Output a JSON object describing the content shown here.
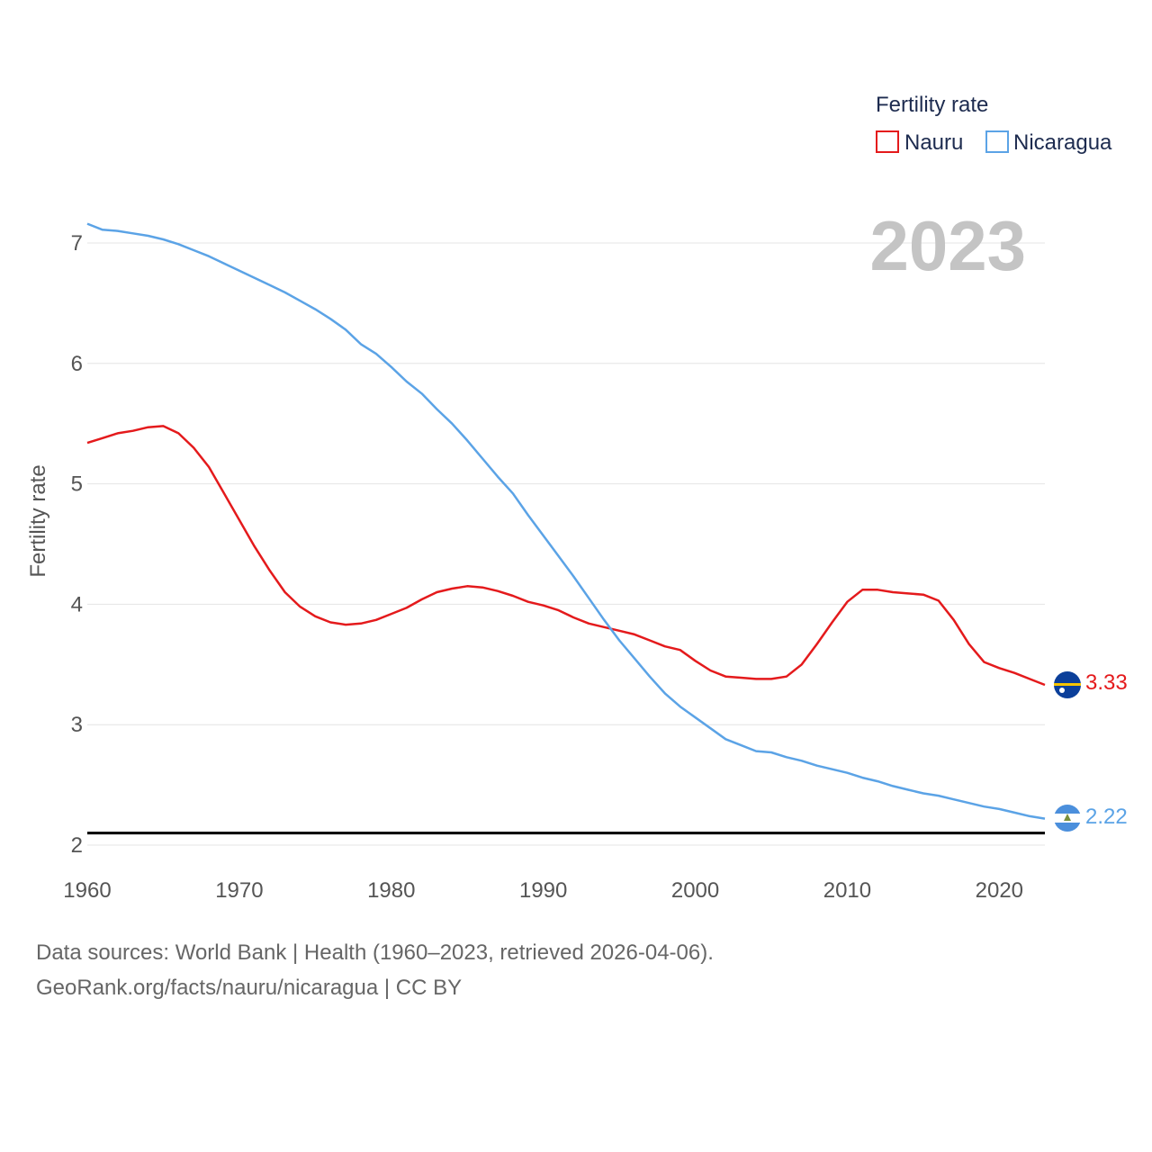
{
  "chart_data": {
    "type": "line",
    "xlabel": "",
    "ylabel": "Fertility rate",
    "xlim": [
      1960,
      2023
    ],
    "ylim": [
      2,
      7.3
    ],
    "x_ticks": [
      1960,
      1970,
      1980,
      1990,
      2000,
      2010,
      2020
    ],
    "y_ticks": [
      2,
      3,
      4,
      5,
      6,
      7
    ],
    "legend_title": "Fertility rate",
    "legend_position": "top-right",
    "year_label": "2023",
    "reference_line": 2.1,
    "x": [
      1960,
      1961,
      1962,
      1963,
      1964,
      1965,
      1966,
      1967,
      1968,
      1969,
      1970,
      1971,
      1972,
      1973,
      1974,
      1975,
      1976,
      1977,
      1978,
      1979,
      1980,
      1981,
      1982,
      1983,
      1984,
      1985,
      1986,
      1987,
      1988,
      1989,
      1990,
      1991,
      1992,
      1993,
      1994,
      1995,
      1996,
      1997,
      1998,
      1999,
      2000,
      2001,
      2002,
      2003,
      2004,
      2005,
      2006,
      2007,
      2008,
      2009,
      2010,
      2011,
      2012,
      2013,
      2014,
      2015,
      2016,
      2017,
      2018,
      2019,
      2020,
      2021,
      2022,
      2023
    ],
    "series": [
      {
        "name": "Nauru",
        "color": "#e41a1c",
        "end_label": "3.33",
        "values": [
          5.34,
          5.38,
          5.42,
          5.44,
          5.47,
          5.48,
          5.42,
          5.3,
          5.14,
          4.92,
          4.7,
          4.48,
          4.28,
          4.1,
          3.98,
          3.9,
          3.85,
          3.83,
          3.84,
          3.87,
          3.92,
          3.97,
          4.04,
          4.1,
          4.13,
          4.15,
          4.14,
          4.11,
          4.07,
          4.02,
          3.99,
          3.95,
          3.89,
          3.84,
          3.81,
          3.78,
          3.75,
          3.7,
          3.65,
          3.62,
          3.53,
          3.45,
          3.4,
          3.39,
          3.38,
          3.38,
          3.4,
          3.5,
          3.67,
          3.85,
          4.02,
          4.12,
          4.12,
          4.1,
          4.09,
          4.08,
          4.03,
          3.87,
          3.67,
          3.52,
          3.47,
          3.43,
          3.38,
          3.33
        ]
      },
      {
        "name": "Nicaragua",
        "color": "#5ba3e6",
        "end_label": "2.22",
        "values": [
          7.16,
          7.11,
          7.1,
          7.08,
          7.06,
          7.03,
          6.99,
          6.94,
          6.89,
          6.83,
          6.77,
          6.71,
          6.65,
          6.59,
          6.52,
          6.45,
          6.37,
          6.28,
          6.16,
          6.08,
          5.97,
          5.85,
          5.75,
          5.62,
          5.5,
          5.36,
          5.21,
          5.06,
          4.92,
          4.74,
          4.57,
          4.4,
          4.23,
          4.05,
          3.87,
          3.7,
          3.55,
          3.4,
          3.26,
          3.15,
          3.06,
          2.97,
          2.88,
          2.83,
          2.78,
          2.77,
          2.73,
          2.7,
          2.66,
          2.63,
          2.6,
          2.56,
          2.53,
          2.49,
          2.46,
          2.43,
          2.41,
          2.38,
          2.35,
          2.32,
          2.3,
          2.27,
          2.24,
          2.22
        ]
      }
    ]
  },
  "footer": {
    "line1": "Data sources: World Bank | Health (1960–2023, retrieved 2026-04-06).",
    "line2": "GeoRank.org/facts/nauru/nicaragua | CC BY"
  }
}
